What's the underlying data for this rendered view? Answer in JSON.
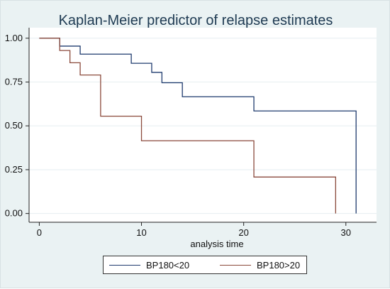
{
  "chart_data": {
    "type": "line",
    "title": "Kaplan-Meier predictor of relapse estimates",
    "xlabel": "analysis time",
    "ylabel": "",
    "xlim": [
      -1,
      33
    ],
    "ylim": [
      -0.05,
      1.06
    ],
    "xticks": [
      0,
      10,
      20,
      30
    ],
    "yticks": [
      0.0,
      0.25,
      0.5,
      0.75,
      1.0
    ],
    "xtick_labels": [
      "0",
      "10",
      "20",
      "30"
    ],
    "ytick_labels": [
      "0.00",
      "0.25",
      "0.50",
      "0.75",
      "1.00"
    ],
    "step": true,
    "grid": "horizontal",
    "legend_position": "bottom",
    "series": [
      {
        "name": "BP180<20",
        "color": "#1f3b6e",
        "x": [
          0,
          2,
          4,
          9,
          11,
          12,
          14,
          21,
          31,
          31
        ],
        "y": [
          1.0,
          0.955,
          0.909,
          0.857,
          0.805,
          0.746,
          0.666,
          0.585,
          0.585,
          0.0
        ]
      },
      {
        "name": "BP180>20",
        "color": "#8b4a3c",
        "x": [
          0,
          2,
          3,
          4,
          6,
          10,
          21,
          29,
          29
        ],
        "y": [
          1.0,
          0.93,
          0.86,
          0.79,
          0.555,
          0.415,
          0.208,
          0.208,
          0.0
        ]
      }
    ]
  }
}
